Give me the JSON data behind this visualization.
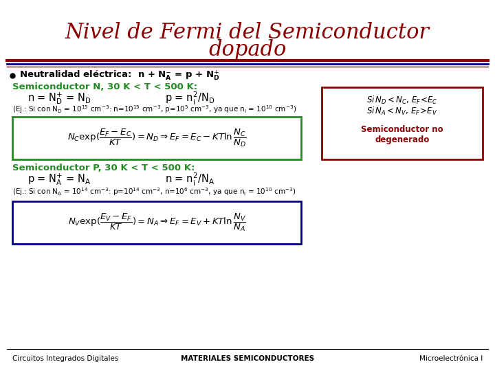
{
  "title_line1": "Nivel de Fermi del Semiconductor",
  "title_line2": "dopado",
  "title_color": "#8B0000",
  "title_fontsize": 22,
  "bg_color": "#FFFFFF",
  "semN_color": "#228B22",
  "formula_N_box_color": "#228B22",
  "side_box_color": "#8B0000",
  "semP_color": "#228B22",
  "formula_P_box_color": "#000080",
  "footer_left": "Circuitos Integrados Digitales",
  "footer_center": "MATERIALES SEMICONDUCTORES",
  "footer_right": "Microelectrónica I",
  "footer_fontsize": 7.5
}
